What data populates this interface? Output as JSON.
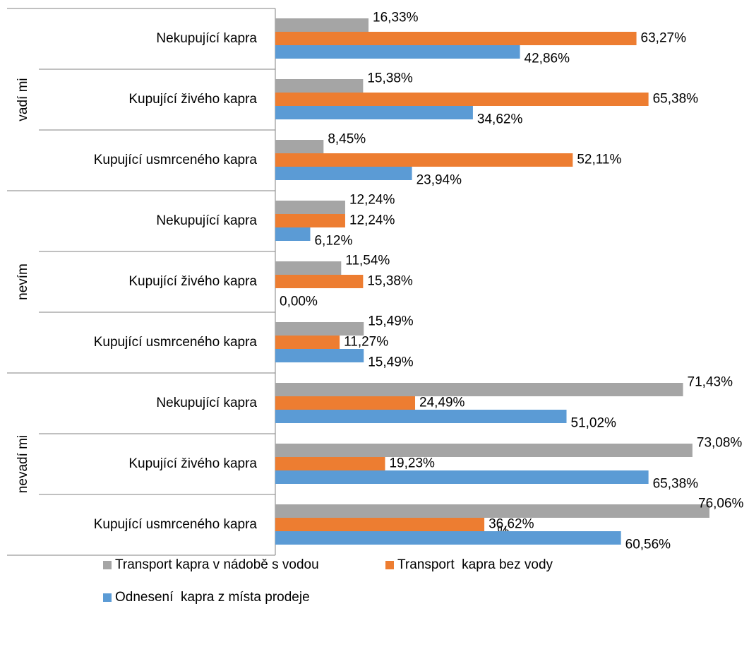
{
  "chart_data": {
    "type": "bar",
    "orientation": "horizontal",
    "x_label": "%",
    "groups": [
      "vadí mi",
      "nevím",
      "nevadí mi"
    ],
    "categories": [
      "Nekupující kapra",
      "Kupující živého kapra",
      "Kupující usmrceného kapra",
      "Nekupující kapra",
      "Kupující živého kapra",
      "Kupující usmrceného kapra",
      "Nekupující kapra",
      "Kupující živého kapra",
      "Kupující usmrceného kapra"
    ],
    "xlim": [
      0,
      82
    ],
    "series": [
      {
        "name": "Transport kapra v nádobě s vodou",
        "color": "#a5a5a5",
        "values": [
          16.33,
          15.38,
          8.45,
          12.24,
          11.54,
          15.49,
          71.43,
          73.08,
          76.06
        ],
        "value_labels": [
          "16,33%",
          "15,38%",
          "8,45%",
          "12,24%",
          "11,54%",
          "15,49%",
          "71,43%",
          "73,08%",
          "76,06%"
        ]
      },
      {
        "name": "Transport  kapra bez vody",
        "color": "#ed7d31",
        "values": [
          63.27,
          65.38,
          52.11,
          12.24,
          15.38,
          11.27,
          24.49,
          19.23,
          36.62
        ],
        "value_labels": [
          "63,27%",
          "65,38%",
          "52,11%",
          "12,24%",
          "15,38%",
          "11,27%",
          "24,49%",
          "19,23%",
          "36,62%"
        ]
      },
      {
        "name": "Odnesení  kapra z místa prodeje",
        "color": "#5b9bd5",
        "values": [
          42.86,
          34.62,
          23.94,
          6.12,
          0,
          15.49,
          51.02,
          65.38,
          60.56
        ],
        "value_labels": [
          "42,86%",
          "34,62%",
          "23,94%",
          "6,12%",
          "0,00%",
          "15,49%",
          "51,02%",
          "65,38%",
          "60,56%"
        ]
      }
    ]
  }
}
